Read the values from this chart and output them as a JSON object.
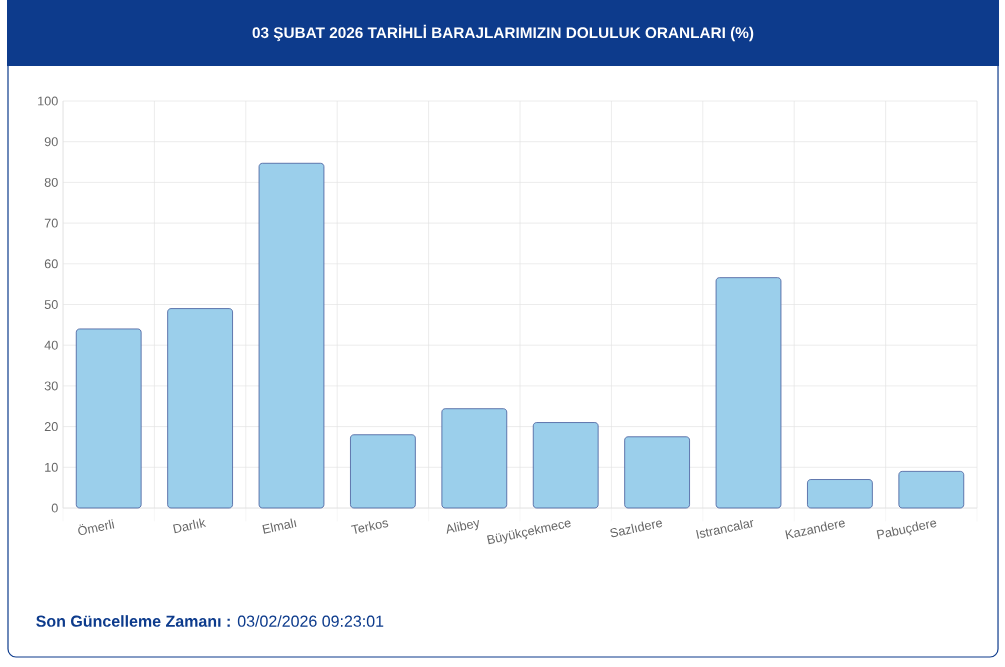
{
  "chart_data": {
    "type": "bar",
    "title": "03 ŞUBAT 2026 TARİHLİ BARAJLARIMIZIN DOLULUK ORANLARI (%)",
    "categories": [
      "Ömerli",
      "Darlık",
      "Elmalı",
      "Terkos",
      "Alibey",
      "Büyükçekmece",
      "Sazlıdere",
      "Istrancalar",
      "Kazandere",
      "Pabuçdere"
    ],
    "values": [
      44.0,
      49.0,
      84.7,
      18.0,
      24.4,
      21.0,
      17.5,
      56.6,
      7.0,
      9.0
    ],
    "color": "#9bcfeb",
    "ylim": [
      0,
      100
    ],
    "yticks": [
      0,
      10,
      20,
      30,
      40,
      50,
      60,
      70,
      80,
      90,
      100
    ],
    "grid": true,
    "legend": false,
    "annotations": [
      "**Son Güncelleme Zamanı :** 03/02/2026 09:23:01"
    ]
  }
}
